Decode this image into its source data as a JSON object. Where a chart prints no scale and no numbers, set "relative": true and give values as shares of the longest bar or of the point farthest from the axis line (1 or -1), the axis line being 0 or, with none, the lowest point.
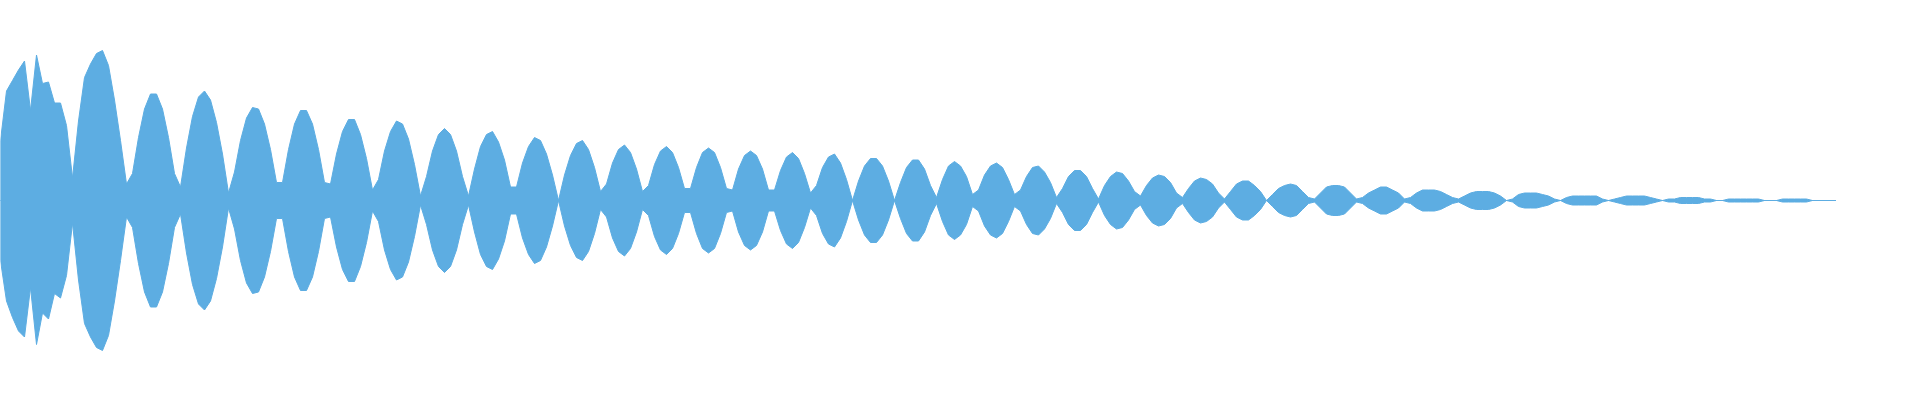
{
  "chart_data": {
    "type": "area",
    "relative": true,
    "categories": [
      null,
      null,
      null,
      null,
      null,
      null,
      null,
      null,
      null,
      null,
      null,
      null,
      null,
      null,
      null,
      null,
      null,
      null,
      null,
      null,
      null,
      null,
      null,
      null,
      null,
      null,
      null,
      null,
      null,
      null,
      null,
      null,
      null,
      null,
      null,
      null,
      null,
      null,
      null,
      null,
      null,
      null,
      null,
      null,
      null,
      null,
      null,
      null,
      null,
      null,
      null,
      null,
      null,
      null,
      null,
      null,
      null,
      null,
      null,
      null,
      null,
      null,
      null,
      null,
      null,
      null,
      null,
      null,
      null,
      null,
      null,
      null,
      null,
      null,
      null,
      null,
      null,
      null,
      null,
      null,
      null,
      null,
      null,
      null,
      null,
      null,
      null,
      null,
      null,
      null,
      null,
      null,
      null,
      null,
      null,
      null,
      null,
      null,
      null,
      null,
      null,
      null,
      null,
      null,
      null,
      null,
      null,
      null,
      null,
      null,
      null,
      null,
      null,
      null,
      null,
      null,
      null,
      null,
      null,
      null,
      null,
      null,
      null,
      null,
      null,
      null,
      null,
      null,
      null,
      null,
      null,
      null,
      null,
      null,
      null,
      null,
      null,
      null,
      null,
      null,
      null,
      null,
      null,
      null,
      null,
      null,
      null,
      null,
      null,
      null,
      null,
      null,
      null,
      null,
      null,
      null,
      null,
      null,
      null,
      null,
      null,
      null,
      null,
      null,
      null,
      null,
      null,
      null,
      null,
      null,
      null,
      null,
      null,
      null,
      null,
      null,
      null,
      null,
      null,
      null,
      null,
      null,
      null,
      null,
      null,
      null,
      null,
      null,
      null,
      null,
      null,
      null,
      null,
      null,
      null,
      null,
      null,
      null,
      null,
      null,
      null,
      null,
      null,
      null,
      null,
      null,
      null,
      null,
      null,
      null,
      null,
      null,
      null,
      null,
      null,
      null,
      null,
      null,
      null,
      null,
      null,
      null,
      null,
      null,
      null,
      null,
      null,
      null,
      null,
      null,
      null,
      null,
      null,
      null,
      null,
      null,
      null,
      null,
      null,
      null,
      null,
      null,
      null,
      null,
      null,
      null,
      null,
      null,
      null,
      null,
      null,
      null,
      null,
      null,
      null,
      null,
      null,
      null,
      null,
      null,
      null,
      null,
      null,
      null,
      null,
      null,
      null,
      null,
      null,
      null,
      null,
      null,
      null,
      null,
      null,
      null,
      null,
      null,
      null,
      null,
      null,
      null,
      null,
      null,
      null,
      null,
      null,
      null,
      null,
      null,
      null,
      null,
      null,
      null,
      null,
      null,
      null,
      null,
      null,
      null,
      null,
      null,
      null,
      null,
      null,
      null,
      null
    ],
    "series": [
      {
        "color": "#5dade2",
        "values": [
          0.4,
          0.73,
          0.8,
          0.87,
          0.93,
          0.6,
          0.97,
          0.78,
          0.79,
          0.65,
          0.65,
          0.5,
          0.15,
          0.53,
          0.82,
          0.91,
          0.98,
          1,
          0.9,
          0.67,
          0.4,
          0.11,
          0.18,
          0.42,
          0.61,
          0.71,
          0.71,
          0.61,
          0.42,
          0.18,
          0.09,
          0.35,
          0.56,
          0.69,
          0.73,
          0.67,
          0.52,
          0.31,
          0.05,
          0.19,
          0.4,
          0.55,
          0.62,
          0.61,
          0.51,
          0.34,
          0.12,
          0.12,
          0.34,
          0.51,
          0.6,
          0.6,
          0.51,
          0.34,
          0.12,
          0.11,
          0.31,
          0.46,
          0.54,
          0.54,
          0.44,
          0.28,
          0.07,
          0.14,
          0.33,
          0.46,
          0.53,
          0.51,
          0.41,
          0.24,
          0.03,
          0.16,
          0.33,
          0.44,
          0.48,
          0.44,
          0.33,
          0.16,
          0.03,
          0.21,
          0.36,
          0.44,
          0.46,
          0.39,
          0.27,
          0.09,
          0.09,
          0.25,
          0.36,
          0.42,
          0.4,
          0.31,
          0.17,
          0,
          0.17,
          0.3,
          0.38,
          0.4,
          0.34,
          0.22,
          0.06,
          0.11,
          0.25,
          0.34,
          0.37,
          0.32,
          0.21,
          0.06,
          0.1,
          0.24,
          0.33,
          0.36,
          0.32,
          0.22,
          0.08,
          0.08,
          0.22,
          0.32,
          0.35,
          0.32,
          0.22,
          0.08,
          0.07,
          0.21,
          0.3,
          0.33,
          0.3,
          0.21,
          0.07,
          0.07,
          0.2,
          0.29,
          0.32,
          0.28,
          0.18,
          0.05,
          0.1,
          0.22,
          0.29,
          0.31,
          0.25,
          0.14,
          0,
          0.13,
          0.23,
          0.28,
          0.28,
          0.23,
          0.13,
          0,
          0.12,
          0.22,
          0.27,
          0.27,
          0.21,
          0.1,
          0.02,
          0.14,
          0.23,
          0.26,
          0.23,
          0.16,
          0.04,
          0.07,
          0.17,
          0.23,
          0.25,
          0.22,
          0.14,
          0.04,
          0.07,
          0.16,
          0.22,
          0.23,
          0.19,
          0.12,
          0.02,
          0.08,
          0.16,
          0.2,
          0.2,
          0.16,
          0.08,
          0.01,
          0.1,
          0.16,
          0.19,
          0.18,
          0.13,
          0.06,
          0.03,
          0.1,
          0.15,
          0.17,
          0.16,
          0.12,
          0.05,
          0.02,
          0.08,
          0.13,
          0.15,
          0.14,
          0.11,
          0.05,
          0.01,
          0.06,
          0.11,
          0.13,
          0.13,
          0.1,
          0.06,
          0,
          0.04,
          0.08,
          0.1,
          0.11,
          0.1,
          0.06,
          0.02,
          0.01,
          0.05,
          0.09,
          0.1,
          0.1,
          0.09,
          0.05,
          0.01,
          0.02,
          0.05,
          0.07,
          0.09,
          0.09,
          0.07,
          0.05,
          0.01,
          0.02,
          0.05,
          0.07,
          0.07,
          0.07,
          0.06,
          0.04,
          0.02,
          0.01,
          0.03,
          0.05,
          0.06,
          0.06,
          0.06,
          0.05,
          0.03,
          0,
          0.01,
          0.04,
          0.05,
          0.05,
          0.05,
          0.04,
          0.03,
          0.01,
          0,
          0.02,
          0.03,
          0.03,
          0.03,
          0.03,
          0.03,
          0.01,
          0,
          0.01,
          0.02,
          0.03,
          0.03,
          0.03,
          0.03,
          0.02,
          0.01,
          0,
          0.01,
          0.01,
          0.02,
          0.02,
          0.02,
          0.02,
          0.01,
          0.01,
          0,
          0,
          0.01,
          0.01,
          0.01,
          0.01,
          0.01,
          0.01,
          0,
          0,
          0,
          0.01,
          0.01,
          0.01,
          0.01,
          0.01,
          0,
          0,
          0,
          0,
          0
        ]
      },
      {
        "color": "#5dade2",
        "values": [
          -0.4,
          -0.67,
          -0.78,
          -0.87,
          -0.91,
          -0.58,
          -0.96,
          -0.75,
          -0.79,
          -0.62,
          -0.65,
          -0.5,
          -0.15,
          -0.53,
          -0.82,
          -0.91,
          -0.98,
          -1,
          -0.9,
          -0.67,
          -0.4,
          -0.11,
          -0.18,
          -0.42,
          -0.61,
          -0.71,
          -0.71,
          -0.61,
          -0.42,
          -0.18,
          -0.09,
          -0.35,
          -0.56,
          -0.69,
          -0.73,
          -0.67,
          -0.52,
          -0.31,
          -0.05,
          -0.19,
          -0.4,
          -0.55,
          -0.62,
          -0.61,
          -0.51,
          -0.34,
          -0.12,
          -0.12,
          -0.34,
          -0.51,
          -0.6,
          -0.6,
          -0.51,
          -0.34,
          -0.12,
          -0.11,
          -0.31,
          -0.46,
          -0.54,
          -0.54,
          -0.44,
          -0.28,
          -0.07,
          -0.14,
          -0.33,
          -0.46,
          -0.53,
          -0.51,
          -0.41,
          -0.24,
          -0.03,
          -0.16,
          -0.33,
          -0.44,
          -0.48,
          -0.44,
          -0.33,
          -0.16,
          -0.03,
          -0.21,
          -0.36,
          -0.44,
          -0.46,
          -0.39,
          -0.27,
          -0.09,
          -0.09,
          -0.25,
          -0.36,
          -0.42,
          -0.4,
          -0.31,
          -0.17,
          0,
          -0.17,
          -0.3,
          -0.38,
          -0.4,
          -0.34,
          -0.22,
          -0.06,
          -0.11,
          -0.25,
          -0.34,
          -0.37,
          -0.32,
          -0.21,
          -0.06,
          -0.1,
          -0.24,
          -0.33,
          -0.36,
          -0.32,
          -0.22,
          -0.08,
          -0.08,
          -0.22,
          -0.32,
          -0.35,
          -0.32,
          -0.22,
          -0.08,
          -0.07,
          -0.21,
          -0.3,
          -0.33,
          -0.3,
          -0.21,
          -0.07,
          -0.07,
          -0.2,
          -0.29,
          -0.32,
          -0.28,
          -0.18,
          -0.05,
          -0.1,
          -0.22,
          -0.29,
          -0.31,
          -0.25,
          -0.14,
          0,
          -0.13,
          -0.23,
          -0.28,
          -0.28,
          -0.23,
          -0.13,
          0,
          -0.12,
          -0.22,
          -0.27,
          -0.27,
          -0.21,
          -0.1,
          -0.02,
          -0.14,
          -0.23,
          -0.26,
          -0.23,
          -0.16,
          -0.04,
          -0.07,
          -0.17,
          -0.23,
          -0.25,
          -0.22,
          -0.14,
          -0.04,
          -0.07,
          -0.16,
          -0.22,
          -0.23,
          -0.19,
          -0.12,
          -0.02,
          -0.08,
          -0.16,
          -0.2,
          -0.2,
          -0.16,
          -0.08,
          -0.01,
          -0.1,
          -0.16,
          -0.19,
          -0.18,
          -0.13,
          -0.06,
          -0.03,
          -0.1,
          -0.15,
          -0.17,
          -0.16,
          -0.12,
          -0.05,
          -0.02,
          -0.08,
          -0.13,
          -0.15,
          -0.14,
          -0.11,
          -0.05,
          -0.01,
          -0.06,
          -0.11,
          -0.13,
          -0.13,
          -0.1,
          -0.06,
          0,
          -0.04,
          -0.08,
          -0.1,
          -0.11,
          -0.1,
          -0.06,
          -0.02,
          -0.01,
          -0.05,
          -0.09,
          -0.1,
          -0.1,
          -0.09,
          -0.05,
          -0.01,
          -0.02,
          -0.05,
          -0.07,
          -0.09,
          -0.09,
          -0.07,
          -0.05,
          -0.01,
          -0.02,
          -0.05,
          -0.07,
          -0.07,
          -0.07,
          -0.06,
          -0.04,
          -0.02,
          -0.01,
          -0.03,
          -0.05,
          -0.06,
          -0.06,
          -0.06,
          -0.05,
          -0.03,
          0,
          -0.01,
          -0.04,
          -0.05,
          -0.05,
          -0.05,
          -0.04,
          -0.03,
          -0.01,
          0,
          -0.02,
          -0.03,
          -0.03,
          -0.03,
          -0.03,
          -0.03,
          -0.01,
          0,
          -0.01,
          -0.02,
          -0.03,
          -0.03,
          -0.03,
          -0.03,
          -0.02,
          -0.01,
          0,
          -0.01,
          -0.01,
          -0.02,
          -0.02,
          -0.02,
          -0.02,
          -0.01,
          -0.01,
          0,
          0,
          -0.01,
          -0.01,
          -0.01,
          -0.01,
          -0.01,
          -0.01,
          0,
          0,
          0,
          -0.01,
          -0.01,
          -0.01,
          -0.01,
          -0.01,
          0,
          0,
          0,
          0,
          0
        ]
      }
    ]
  }
}
